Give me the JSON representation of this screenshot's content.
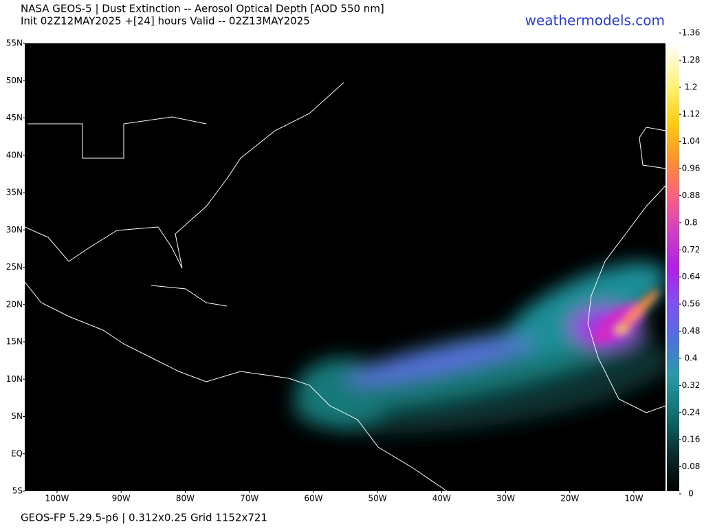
{
  "header": {
    "title": "NASA GEOS-5 | Dust Extinction -- Aerosol Optical Depth [AOD 550 nm]",
    "subtitle": "Init 02Z12MAY2025 +[24] hours Valid -- 02Z13MAY2025",
    "site": "weathermodels.com"
  },
  "footer": "GEOS-FP 5.29.5-p6 | 0.312x0.25 Grid 1152x721",
  "map": {
    "lat_labels": [
      "55N",
      "50N",
      "45N",
      "40N",
      "35N",
      "30N",
      "25N",
      "20N",
      "15N",
      "10N",
      "5N",
      "EQ",
      "5S"
    ],
    "lon_labels": [
      "100W",
      "90W",
      "80W",
      "70W",
      "60W",
      "50W",
      "40W",
      "30W",
      "20W",
      "10W"
    ]
  },
  "colorbar": {
    "ticks": [
      1.36,
      1.28,
      1.2,
      1.12,
      1.04,
      0.96,
      0.88,
      0.8,
      0.72,
      0.64,
      0.56,
      0.48,
      0.4,
      0.32,
      0.24,
      0.16,
      0.08,
      0
    ]
  }
}
